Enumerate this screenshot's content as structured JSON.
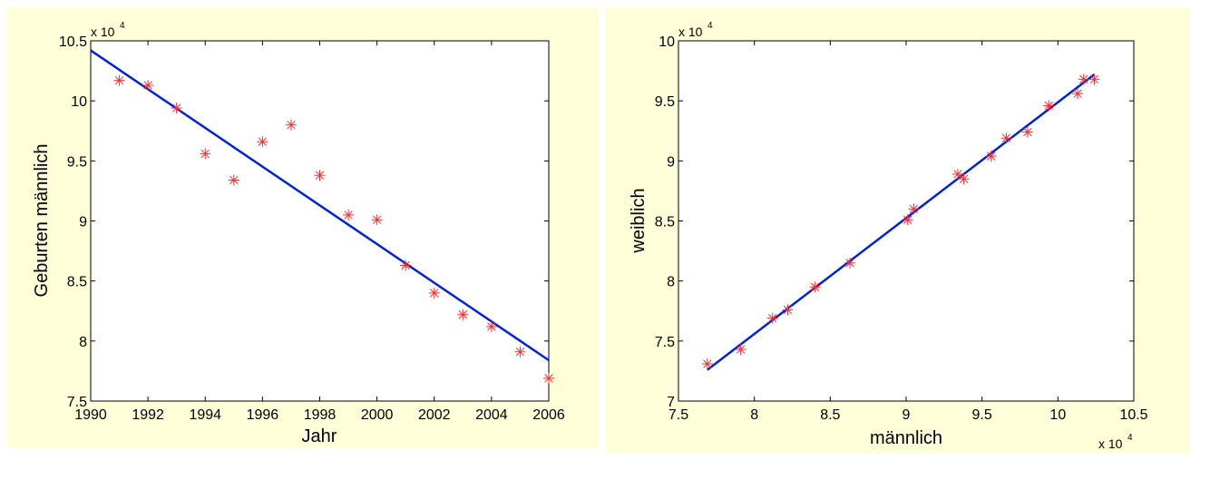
{
  "colors": {
    "background_panel": "#fefed8",
    "axes_face": "#ffffff",
    "fit_line": "#0022dd",
    "markers": "#ff2a2a"
  },
  "chart_data": [
    {
      "type": "scatter",
      "title": "",
      "xlabel": "Jahr",
      "ylabel": "Geburten männlich",
      "y_multiplier_label": "x 10",
      "y_multiplier_exponent": "4",
      "xlim": [
        1990,
        2006
      ],
      "ylim": [
        7.5,
        10.5
      ],
      "x_ticks": [
        "1990",
        "1992",
        "1994",
        "1996",
        "1998",
        "2000",
        "2002",
        "2004",
        "2006"
      ],
      "y_ticks": [
        "7.5",
        "8",
        "8.5",
        "9",
        "9.5",
        "10",
        "10.5"
      ],
      "grid": false,
      "series": [
        {
          "type": "scatter",
          "marker": "asterisk",
          "x": [
            1991,
            1992,
            1993,
            1994,
            1995,
            1996,
            1997,
            1998,
            1999,
            2000,
            2001,
            2002,
            2003,
            2004,
            2005,
            2006
          ],
          "y": [
            10.17,
            10.13,
            9.94,
            9.56,
            9.34,
            9.66,
            9.8,
            9.38,
            9.05,
            9.01,
            8.63,
            8.4,
            8.22,
            8.12,
            7.91,
            7.69
          ]
        },
        {
          "type": "line",
          "x": [
            1990,
            2006
          ],
          "y": [
            10.42,
            7.84
          ]
        }
      ]
    },
    {
      "type": "scatter",
      "title": "",
      "xlabel": "männlich",
      "ylabel": "weiblich",
      "x_multiplier_label": "x 10",
      "x_multiplier_exponent": "4",
      "y_multiplier_label": "x 10",
      "y_multiplier_exponent": "4",
      "xlim": [
        7.5,
        10.5
      ],
      "ylim": [
        7,
        10
      ],
      "x_ticks": [
        "7.5",
        "8",
        "8.5",
        "9",
        "9.5",
        "10",
        "10.5"
      ],
      "y_ticks": [
        "7",
        "7.5",
        "8",
        "8.5",
        "9",
        "9.5",
        "10"
      ],
      "grid": false,
      "series": [
        {
          "type": "scatter",
          "marker": "asterisk",
          "x": [
            7.69,
            7.91,
            8.12,
            8.22,
            8.4,
            8.63,
            9.01,
            9.05,
            9.34,
            9.38,
            9.56,
            9.66,
            9.8,
            9.94,
            10.13,
            10.17,
            10.24
          ],
          "y": [
            7.31,
            7.43,
            7.69,
            7.76,
            7.95,
            8.15,
            8.51,
            8.6,
            8.89,
            8.85,
            9.04,
            9.19,
            9.24,
            9.46,
            9.56,
            9.68,
            9.68
          ]
        },
        {
          "type": "line",
          "x": [
            7.69,
            10.24
          ],
          "y": [
            7.26,
            9.72
          ]
        }
      ]
    }
  ]
}
